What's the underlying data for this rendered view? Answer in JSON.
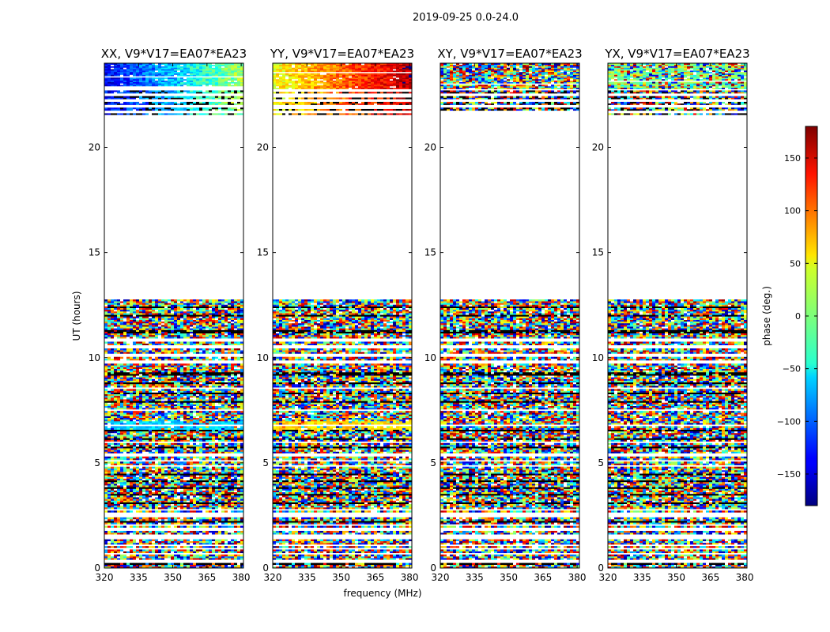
{
  "figure": {
    "suptitle": "2019-09-25 0.0-24.0",
    "xlabel": "frequency (MHz)",
    "ylabel": "UT (hours)"
  },
  "colorbar": {
    "label": "phase (deg.)",
    "range": [
      -180,
      180
    ],
    "ticks": [
      -150,
      -100,
      -50,
      0,
      50,
      100,
      150
    ],
    "tick_labels": [
      "−150",
      "−100",
      "−50",
      "0",
      "50",
      "100",
      "150"
    ],
    "colormap": "jet"
  },
  "chart_data": [
    {
      "type": "heatmap",
      "title": "XX, V9*V17=EA07*EA23",
      "x_range": [
        320,
        381
      ],
      "y_range": [
        0,
        24
      ],
      "x_ticks": [
        320,
        335,
        350,
        365,
        380
      ],
      "y_ticks": [
        0,
        5,
        10,
        15,
        20
      ],
      "z_label": "phase (deg.)",
      "z_range": [
        -180,
        180
      ],
      "data_gap_ut": [
        12.85,
        21.55
      ],
      "phase_structure": [
        {
          "ut": [
            22.8,
            24.0
          ],
          "phase": "coherent, -140 to 20 deg, increasing with frequency"
        },
        {
          "ut": [
            21.55,
            22.8
          ],
          "phase": "mostly flagged, thin coherent strips near -80 deg"
        },
        {
          "ut": [
            6.5,
            7.0
          ],
          "phase": "coherent strip near -60 deg"
        },
        {
          "ut": [
            0.0,
            12.85
          ],
          "phase": "noise, uniformly distributed"
        }
      ]
    },
    {
      "type": "heatmap",
      "title": "YY, V9*V17=EA07*EA23",
      "x_range": [
        320,
        381
      ],
      "y_range": [
        0,
        24
      ],
      "x_ticks": [
        320,
        335,
        350,
        365,
        380
      ],
      "y_ticks": [
        0,
        5,
        10,
        15,
        20
      ],
      "z_label": "phase (deg.)",
      "z_range": [
        -180,
        180
      ],
      "data_gap_ut": [
        12.85,
        21.55
      ],
      "phase_structure": [
        {
          "ut": [
            22.8,
            24.0
          ],
          "phase": "coherent, 40 to 160 deg, increasing with frequency"
        },
        {
          "ut": [
            21.55,
            22.8
          ],
          "phase": "mostly flagged, thin coherent strips near 90 deg"
        },
        {
          "ut": [
            6.5,
            7.0
          ],
          "phase": "coherent strip near 60 deg"
        },
        {
          "ut": [
            0.0,
            12.85
          ],
          "phase": "noise, uniformly distributed"
        }
      ]
    },
    {
      "type": "heatmap",
      "title": "XY, V9*V17=EA07*EA23",
      "x_range": [
        320,
        381
      ],
      "y_range": [
        0,
        24
      ],
      "x_ticks": [
        320,
        335,
        350,
        365,
        380
      ],
      "y_ticks": [
        0,
        5,
        10,
        15,
        20
      ],
      "z_label": "phase (deg.)",
      "z_range": [
        -180,
        180
      ],
      "data_gap_ut": [
        12.85,
        21.55
      ],
      "phase_structure": [
        {
          "ut": [
            0.0,
            24.0
          ],
          "phase": "noise, uniformly distributed"
        }
      ]
    },
    {
      "type": "heatmap",
      "title": "YX, V9*V17=EA07*EA23",
      "x_range": [
        320,
        381
      ],
      "y_range": [
        0,
        24
      ],
      "x_ticks": [
        320,
        335,
        350,
        365,
        380
      ],
      "y_ticks": [
        0,
        5,
        10,
        15,
        20
      ],
      "z_label": "phase (deg.)",
      "z_range": [
        -180,
        180
      ],
      "data_gap_ut": [
        12.85,
        21.55
      ],
      "phase_structure": [
        {
          "ut": [
            22.8,
            24.0
          ],
          "phase": "weakly coherent near 0 deg, mostly noise"
        },
        {
          "ut": [
            0.0,
            22.8
          ],
          "phase": "noise, uniformly distributed"
        }
      ]
    }
  ]
}
